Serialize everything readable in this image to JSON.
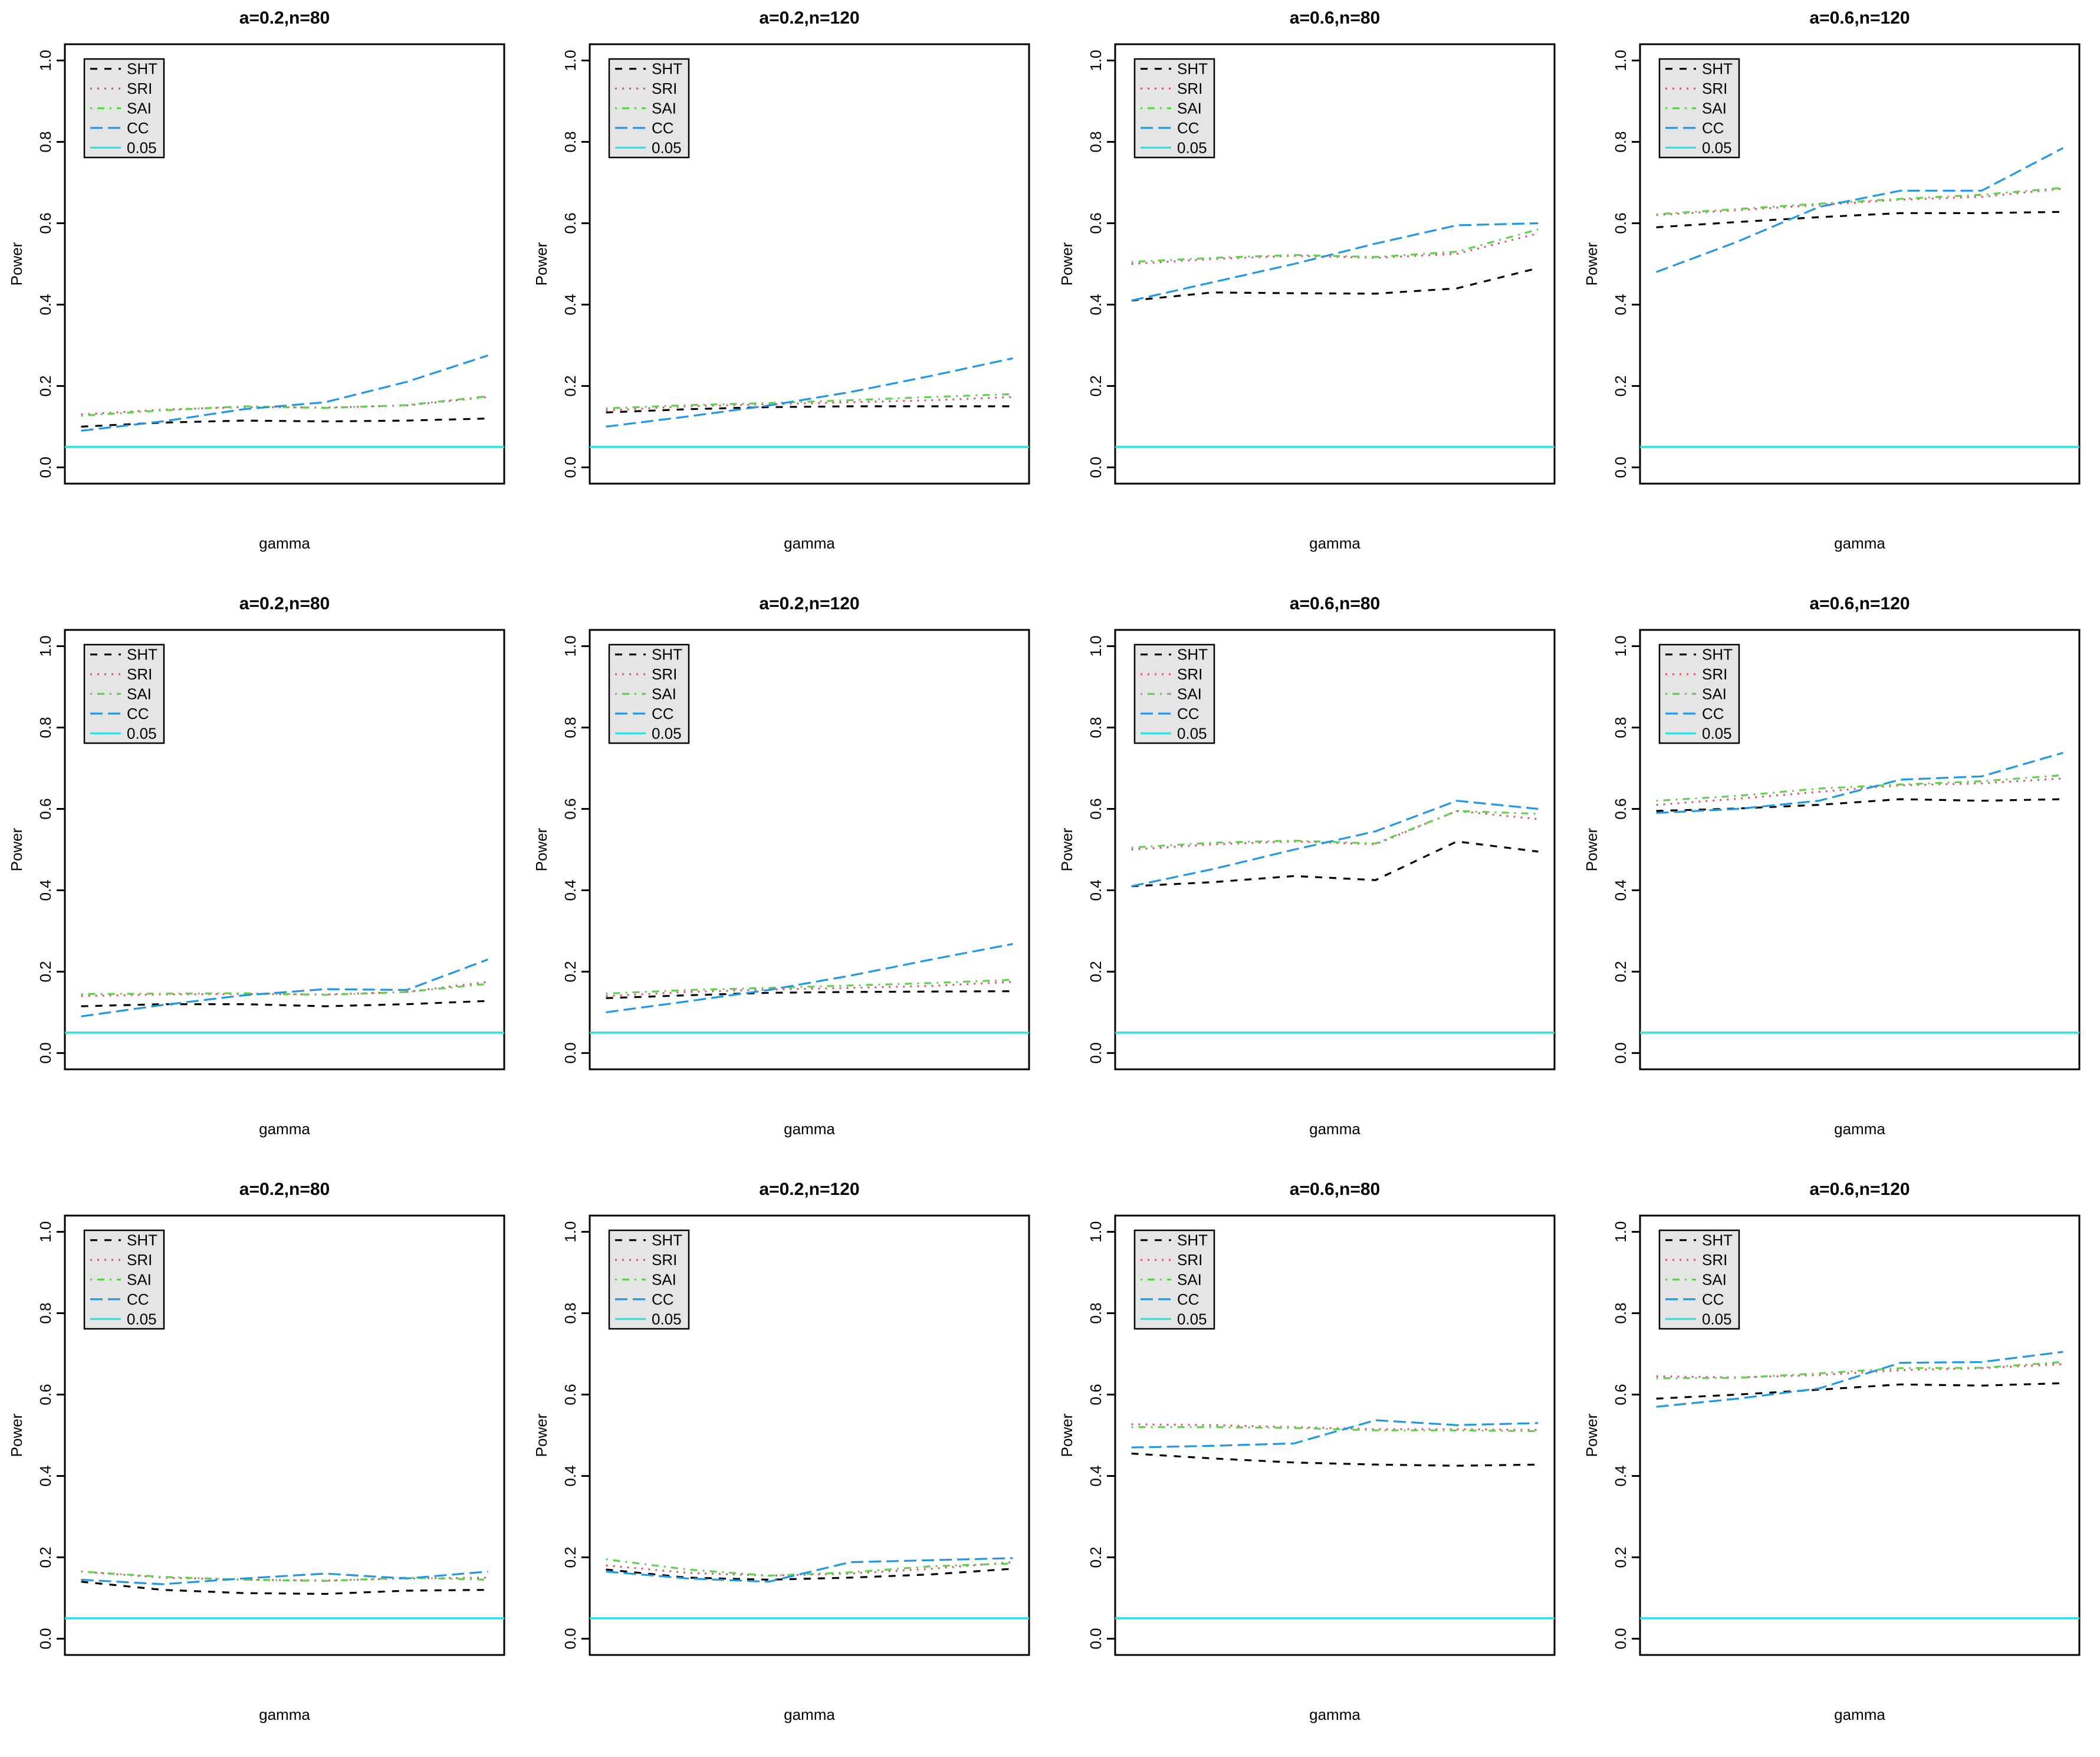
{
  "figure": {
    "ylabel": "Power",
    "xlabel": "gamma",
    "y_ticks": [
      "0.0",
      "0.2",
      "0.4",
      "0.6",
      "0.8",
      "1.0"
    ],
    "ylim": [
      0,
      1
    ],
    "background": "#ffffff",
    "legend_bg": "#E5E5E5",
    "legend_border": "#000000"
  },
  "legend": {
    "entries": [
      "SHT",
      "SRI",
      "SAI",
      "CC",
      "0.05"
    ]
  },
  "series_styles": {
    "SHT": {
      "color": "#000000",
      "dash": "12,12",
      "label": "SHT"
    },
    "SRI": {
      "color": "#DF536B",
      "dash": "3,9",
      "label": "SRI"
    },
    "SAI": {
      "color": "#61D04F",
      "dash": "3,9,12,9",
      "label": "SAI"
    },
    "CC": {
      "color": "#2297E6",
      "dash": "21,9",
      "label": "CC"
    },
    "REF": {
      "color": "#28E2E5",
      "dash": "",
      "label": "0.05"
    }
  },
  "chart_data": [
    {
      "type": "line",
      "title": "a=0.2,n=80",
      "xlabel": "gamma",
      "ylabel": "Power",
      "ylim": [
        0,
        1
      ],
      "x_tick_labels_shown": false,
      "legend_position": "top-left",
      "ref_line": {
        "name": "0.05",
        "value": 0.05
      },
      "series": [
        {
          "name": "SHT",
          "values": [
            0.1,
            0.11,
            0.115,
            0.113,
            0.115,
            0.12
          ]
        },
        {
          "name": "SRI",
          "values": [
            0.13,
            0.142,
            0.148,
            0.147,
            0.152,
            0.173
          ]
        },
        {
          "name": "SAI",
          "values": [
            0.127,
            0.14,
            0.15,
            0.146,
            0.153,
            0.175
          ]
        },
        {
          "name": "CC",
          "values": [
            0.09,
            0.113,
            0.143,
            0.16,
            0.21,
            0.275
          ]
        }
      ]
    },
    {
      "type": "line",
      "title": "a=0.2,n=120",
      "xlabel": "gamma",
      "ylabel": "Power",
      "ylim": [
        0,
        1
      ],
      "x_tick_labels_shown": false,
      "legend_position": "top-left",
      "ref_line": {
        "name": "0.05",
        "value": 0.05
      },
      "series": [
        {
          "name": "SHT",
          "values": [
            0.135,
            0.143,
            0.148,
            0.15,
            0.15,
            0.15
          ]
        },
        {
          "name": "SRI",
          "values": [
            0.14,
            0.15,
            0.155,
            0.16,
            0.165,
            0.173
          ]
        },
        {
          "name": "SAI",
          "values": [
            0.145,
            0.153,
            0.158,
            0.165,
            0.173,
            0.18
          ]
        },
        {
          "name": "CC",
          "values": [
            0.1,
            0.125,
            0.152,
            0.185,
            0.225,
            0.268
          ]
        }
      ]
    },
    {
      "type": "line",
      "title": "a=0.6,n=80",
      "xlabel": "gamma",
      "ylabel": "Power",
      "ylim": [
        0,
        1
      ],
      "x_tick_labels_shown": false,
      "legend_position": "top-left",
      "ref_line": {
        "name": "0.05",
        "value": 0.05
      },
      "series": [
        {
          "name": "SHT",
          "values": [
            0.41,
            0.43,
            0.428,
            0.427,
            0.44,
            0.49
          ]
        },
        {
          "name": "SRI",
          "values": [
            0.5,
            0.512,
            0.52,
            0.515,
            0.525,
            0.575
          ]
        },
        {
          "name": "SAI",
          "values": [
            0.505,
            0.515,
            0.522,
            0.517,
            0.53,
            0.585
          ]
        },
        {
          "name": "CC",
          "values": [
            0.41,
            0.455,
            0.5,
            0.55,
            0.595,
            0.6
          ]
        }
      ]
    },
    {
      "type": "line",
      "title": "a=0.6,n=120",
      "xlabel": "gamma",
      "ylabel": "Power",
      "ylim": [
        0,
        1
      ],
      "x_tick_labels_shown": false,
      "legend_position": "top-left",
      "ref_line": {
        "name": "0.05",
        "value": 0.05
      },
      "series": [
        {
          "name": "SHT",
          "values": [
            0.59,
            0.603,
            0.615,
            0.625,
            0.625,
            0.628
          ]
        },
        {
          "name": "SRI",
          "values": [
            0.62,
            0.632,
            0.645,
            0.658,
            0.665,
            0.685
          ]
        },
        {
          "name": "SAI",
          "values": [
            0.622,
            0.635,
            0.648,
            0.66,
            0.67,
            0.687
          ]
        },
        {
          "name": "CC",
          "values": [
            0.48,
            0.555,
            0.64,
            0.68,
            0.68,
            0.785
          ]
        }
      ]
    },
    {
      "type": "line",
      "title": "a=0.2,n=80",
      "xlabel": "gamma",
      "ylabel": "Power",
      "ylim": [
        0,
        1
      ],
      "x_tick_labels_shown": false,
      "legend_position": "top-left",
      "ref_line": {
        "name": "0.05",
        "value": 0.05
      },
      "series": [
        {
          "name": "SHT",
          "values": [
            0.115,
            0.12,
            0.12,
            0.115,
            0.12,
            0.128
          ]
        },
        {
          "name": "SRI",
          "values": [
            0.14,
            0.144,
            0.145,
            0.144,
            0.15,
            0.175
          ]
        },
        {
          "name": "SAI",
          "values": [
            0.145,
            0.146,
            0.147,
            0.143,
            0.15,
            0.17
          ]
        },
        {
          "name": "CC",
          "values": [
            0.09,
            0.118,
            0.142,
            0.157,
            0.155,
            0.23
          ]
        }
      ]
    },
    {
      "type": "line",
      "title": "a=0.2,n=120",
      "xlabel": "gamma",
      "ylabel": "Power",
      "ylim": [
        0,
        1
      ],
      "x_tick_labels_shown": false,
      "legend_position": "top-left",
      "ref_line": {
        "name": "0.05",
        "value": 0.05
      },
      "series": [
        {
          "name": "SHT",
          "values": [
            0.135,
            0.142,
            0.148,
            0.15,
            0.151,
            0.152
          ]
        },
        {
          "name": "SRI",
          "values": [
            0.14,
            0.15,
            0.156,
            0.16,
            0.165,
            0.175
          ]
        },
        {
          "name": "SAI",
          "values": [
            0.146,
            0.155,
            0.16,
            0.166,
            0.172,
            0.18
          ]
        },
        {
          "name": "CC",
          "values": [
            0.1,
            0.127,
            0.155,
            0.19,
            0.23,
            0.268
          ]
        }
      ]
    },
    {
      "type": "line",
      "title": "a=0.6,n=80",
      "xlabel": "gamma",
      "ylabel": "Power",
      "ylim": [
        0,
        1
      ],
      "x_tick_labels_shown": false,
      "legend_position": "top-left",
      "ref_line": {
        "name": "0.05",
        "value": 0.05
      },
      "series": [
        {
          "name": "SHT",
          "values": [
            0.41,
            0.42,
            0.435,
            0.425,
            0.52,
            0.495
          ]
        },
        {
          "name": "SRI",
          "values": [
            0.5,
            0.513,
            0.52,
            0.513,
            0.595,
            0.575
          ]
        },
        {
          "name": "SAI",
          "values": [
            0.505,
            0.517,
            0.522,
            0.515,
            0.595,
            0.588
          ]
        },
        {
          "name": "CC",
          "values": [
            0.41,
            0.452,
            0.5,
            0.545,
            0.62,
            0.6
          ]
        }
      ]
    },
    {
      "type": "line",
      "title": "a=0.6,n=120",
      "xlabel": "gamma",
      "ylabel": "Power",
      "ylim": [
        0,
        1
      ],
      "x_tick_labels_shown": false,
      "legend_position": "top-left",
      "ref_line": {
        "name": "0.05",
        "value": 0.05
      },
      "series": [
        {
          "name": "SHT",
          "values": [
            0.595,
            0.601,
            0.61,
            0.624,
            0.62,
            0.624
          ]
        },
        {
          "name": "SRI",
          "values": [
            0.61,
            0.625,
            0.642,
            0.658,
            0.663,
            0.675
          ]
        },
        {
          "name": "SAI",
          "values": [
            0.62,
            0.632,
            0.65,
            0.66,
            0.668,
            0.683
          ]
        },
        {
          "name": "CC",
          "values": [
            0.59,
            0.6,
            0.62,
            0.672,
            0.68,
            0.738
          ]
        }
      ]
    },
    {
      "type": "line",
      "title": "a=0.2,n=80",
      "xlabel": "gamma",
      "ylabel": "Power",
      "ylim": [
        0,
        1
      ],
      "x_tick_labels_shown": false,
      "legend_position": "top-left",
      "ref_line": {
        "name": "0.05",
        "value": 0.05
      },
      "series": [
        {
          "name": "SHT",
          "values": [
            0.14,
            0.12,
            0.112,
            0.11,
            0.118,
            0.12
          ]
        },
        {
          "name": "SRI",
          "values": [
            0.165,
            0.15,
            0.145,
            0.143,
            0.148,
            0.15
          ]
        },
        {
          "name": "SAI",
          "values": [
            0.165,
            0.152,
            0.145,
            0.142,
            0.15,
            0.145
          ]
        },
        {
          "name": "CC",
          "values": [
            0.145,
            0.134,
            0.148,
            0.16,
            0.148,
            0.165
          ]
        }
      ]
    },
    {
      "type": "line",
      "title": "a=0.2,n=120",
      "xlabel": "gamma",
      "ylabel": "Power",
      "ylim": [
        0,
        1
      ],
      "x_tick_labels_shown": false,
      "legend_position": "top-left",
      "ref_line": {
        "name": "0.05",
        "value": 0.05
      },
      "series": [
        {
          "name": "SHT",
          "values": [
            0.17,
            0.15,
            0.145,
            0.15,
            0.158,
            0.172
          ]
        },
        {
          "name": "SRI",
          "values": [
            0.18,
            0.162,
            0.155,
            0.16,
            0.172,
            0.188
          ]
        },
        {
          "name": "SAI",
          "values": [
            0.195,
            0.17,
            0.155,
            0.163,
            0.178,
            0.185
          ]
        },
        {
          "name": "CC",
          "values": [
            0.165,
            0.148,
            0.14,
            0.188,
            0.193,
            0.198
          ]
        }
      ]
    },
    {
      "type": "line",
      "title": "a=0.6,n=80",
      "xlabel": "gamma",
      "ylabel": "Power",
      "ylim": [
        0,
        1
      ],
      "x_tick_labels_shown": false,
      "legend_position": "top-left",
      "ref_line": {
        "name": "0.05",
        "value": 0.05
      },
      "series": [
        {
          "name": "SHT",
          "values": [
            0.455,
            0.443,
            0.433,
            0.428,
            0.425,
            0.428
          ]
        },
        {
          "name": "SRI",
          "values": [
            0.527,
            0.525,
            0.52,
            0.515,
            0.515,
            0.513
          ]
        },
        {
          "name": "SAI",
          "values": [
            0.52,
            0.52,
            0.518,
            0.512,
            0.512,
            0.51
          ]
        },
        {
          "name": "CC",
          "values": [
            0.47,
            0.474,
            0.48,
            0.537,
            0.525,
            0.53
          ]
        }
      ]
    },
    {
      "type": "line",
      "title": "a=0.6,n=120",
      "xlabel": "gamma",
      "ylabel": "Power",
      "ylim": [
        0,
        1
      ],
      "x_tick_labels_shown": false,
      "legend_position": "top-left",
      "ref_line": {
        "name": "0.05",
        "value": 0.05
      },
      "series": [
        {
          "name": "SHT",
          "values": [
            0.59,
            0.6,
            0.612,
            0.625,
            0.622,
            0.628
          ]
        },
        {
          "name": "SRI",
          "values": [
            0.645,
            0.642,
            0.648,
            0.66,
            0.665,
            0.675
          ]
        },
        {
          "name": "SAI",
          "values": [
            0.64,
            0.641,
            0.652,
            0.665,
            0.666,
            0.68
          ]
        },
        {
          "name": "CC",
          "values": [
            0.57,
            0.59,
            0.615,
            0.678,
            0.68,
            0.705
          ]
        }
      ]
    }
  ]
}
